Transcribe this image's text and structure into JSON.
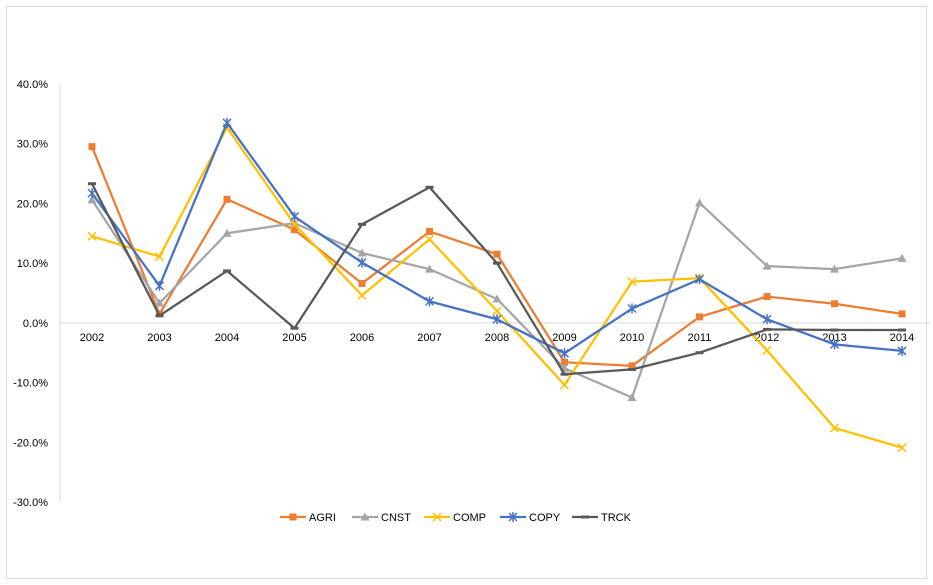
{
  "chart_data": {
    "type": "line",
    "title": "",
    "xlabel": "",
    "ylabel": "",
    "categories": [
      "2002",
      "2003",
      "2004",
      "2005",
      "2006",
      "2007",
      "2008",
      "2009",
      "2010",
      "2011",
      "2012",
      "2013",
      "2014"
    ],
    "ylim": [
      -30,
      40
    ],
    "y_ticks": [
      40,
      30,
      20,
      10,
      0,
      -10,
      -20,
      -30
    ],
    "y_tick_labels": [
      "40.0%",
      "30.0%",
      "20.0%",
      "10.0%",
      "0.0%",
      "-10.0%",
      "-20.0%",
      "-30.0%"
    ],
    "grid": false,
    "legend_position": "bottom",
    "series": [
      {
        "name": "AGRI",
        "color": "#ED7D31",
        "marker": "square",
        "values": [
          29.5,
          1.5,
          20.7,
          15.6,
          6.6,
          15.3,
          11.5,
          -6.6,
          -7.2,
          1.0,
          4.4,
          3.2,
          1.5
        ]
      },
      {
        "name": "CNST",
        "color": "#A5A5A5",
        "marker": "triangle",
        "values": [
          20.6,
          3.3,
          15.0,
          16.7,
          11.7,
          9.0,
          4.0,
          -7.6,
          -12.5,
          20.1,
          9.5,
          9.0,
          10.8
        ]
      },
      {
        "name": "COMP",
        "color": "#FFC000",
        "marker": "x",
        "values": [
          14.5,
          11.1,
          32.7,
          16.5,
          4.6,
          14.0,
          2.0,
          -10.4,
          6.9,
          7.5,
          -4.6,
          -17.6,
          -20.9
        ]
      },
      {
        "name": "COPY",
        "color": "#4472C4",
        "marker": "star",
        "values": [
          21.7,
          6.2,
          33.5,
          17.8,
          10.1,
          3.6,
          0.6,
          -5.1,
          2.4,
          7.3,
          0.6,
          -3.6,
          -4.7
        ]
      },
      {
        "name": "TRCK",
        "color": "#595959",
        "marker": "dash",
        "values": [
          23.3,
          1.2,
          8.7,
          -0.9,
          16.5,
          22.7,
          10.0,
          -8.6,
          -7.8,
          -5.0,
          -1.1,
          -1.2,
          -1.2
        ]
      }
    ]
  }
}
